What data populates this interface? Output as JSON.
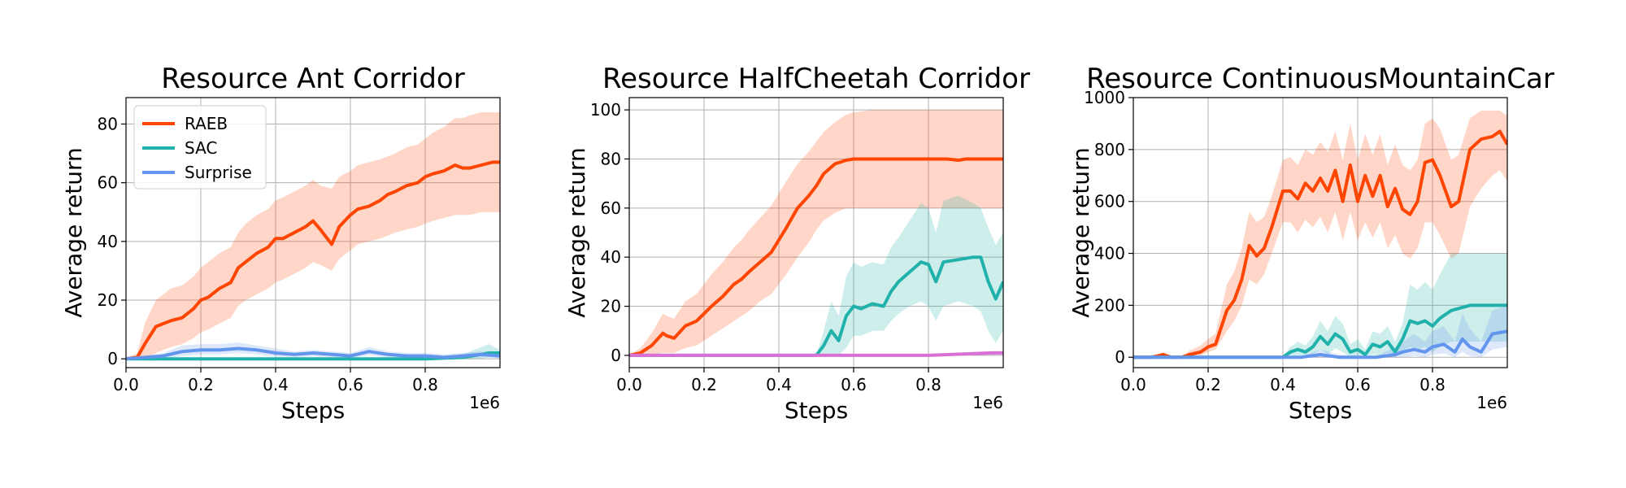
{
  "colors": {
    "RAEB": "#ff4500",
    "SAC": "#20b2aa",
    "Surprise": "#6495ed",
    "magenta": "#da70d6"
  },
  "legend": {
    "placement": "upper-left",
    "entries": [
      "RAEB",
      "SAC",
      "Surprise"
    ]
  },
  "chart_data": [
    {
      "type": "line",
      "title": "Resource Ant Corridor",
      "xlabel": "Steps",
      "ylabel": "Average return",
      "x_offset_label": "1e6",
      "xlim": [
        0,
        1.0
      ],
      "ylim": [
        -3,
        89
      ],
      "xticks": [
        0.0,
        0.2,
        0.4,
        0.6,
        0.8
      ],
      "xtick_labels": [
        "0.0",
        "0.2",
        "0.4",
        "0.6",
        "0.8"
      ],
      "yticks": [
        0,
        20,
        40,
        60,
        80
      ],
      "ytick_labels": [
        "0",
        "20",
        "40",
        "60",
        "80"
      ],
      "grid": true,
      "legend": true,
      "series": [
        {
          "name": "RAEB",
          "color": "#ff4500",
          "x": [
            0,
            0.03,
            0.05,
            0.08,
            0.1,
            0.12,
            0.15,
            0.18,
            0.2,
            0.22,
            0.25,
            0.28,
            0.3,
            0.32,
            0.35,
            0.38,
            0.4,
            0.42,
            0.45,
            0.48,
            0.5,
            0.52,
            0.55,
            0.57,
            0.6,
            0.62,
            0.65,
            0.68,
            0.7,
            0.72,
            0.75,
            0.78,
            0.8,
            0.82,
            0.85,
            0.88,
            0.9,
            0.92,
            0.95,
            0.98,
            1.0
          ],
          "y": [
            0,
            0.5,
            5,
            11,
            12,
            13,
            14,
            17,
            20,
            21,
            24,
            26,
            31,
            33,
            36,
            38,
            41,
            41,
            43,
            45,
            47,
            44,
            39,
            45,
            49,
            51,
            52,
            54,
            56,
            57,
            59,
            60,
            62,
            63,
            64,
            66,
            65,
            65,
            66,
            67,
            67
          ],
          "lower": [
            0,
            0,
            0,
            2,
            3,
            4,
            5,
            7,
            9,
            10,
            12,
            14,
            18,
            20,
            22,
            24,
            26,
            27,
            29,
            31,
            33,
            32,
            30,
            34,
            37,
            39,
            40,
            41,
            42,
            43,
            44,
            45,
            46,
            47,
            48,
            49,
            49,
            49,
            50,
            50,
            50
          ],
          "upper": [
            0,
            2,
            12,
            20,
            22,
            24,
            25,
            28,
            31,
            33,
            36,
            38,
            43,
            46,
            49,
            51,
            54,
            55,
            57,
            59,
            61,
            59,
            58,
            62,
            64,
            66,
            67,
            68,
            69,
            70,
            72,
            73,
            75,
            77,
            79,
            82,
            82,
            83,
            84,
            84,
            84
          ]
        },
        {
          "name": "SAC",
          "color": "#20b2aa",
          "x": [
            0,
            0.2,
            0.4,
            0.6,
            0.8,
            0.9,
            0.95,
            0.97,
            1.0
          ],
          "y": [
            0,
            0,
            0,
            0,
            0,
            0.5,
            1.5,
            2,
            2
          ],
          "lower": [
            0,
            0,
            0,
            0,
            0,
            0,
            0,
            0.5,
            0.5
          ],
          "upper": [
            0,
            0,
            0,
            0,
            0.5,
            1.5,
            4,
            5,
            3
          ]
        },
        {
          "name": "Surprise",
          "color": "#6495ed",
          "x": [
            0,
            0.05,
            0.1,
            0.15,
            0.2,
            0.25,
            0.3,
            0.35,
            0.4,
            0.45,
            0.5,
            0.55,
            0.6,
            0.65,
            0.7,
            0.75,
            0.8,
            0.85,
            0.9,
            0.95,
            1.0
          ],
          "y": [
            0,
            0.5,
            1,
            2.5,
            3,
            3,
            3.5,
            3,
            2,
            1.5,
            2,
            1.5,
            1,
            2.5,
            1.5,
            1,
            1,
            0.5,
            1,
            1.5,
            1
          ],
          "lower": [
            0,
            0,
            0,
            1,
            1.5,
            1.5,
            2,
            1.5,
            0.8,
            0.5,
            0.8,
            0.5,
            0.2,
            1.2,
            0.5,
            0.2,
            0.2,
            0,
            0.2,
            0.5,
            0.2
          ],
          "upper": [
            0,
            1,
            2,
            4.5,
            5,
            5,
            5.5,
            4.5,
            3.5,
            2.5,
            3,
            2.5,
            2,
            4,
            2.5,
            2,
            2,
            1.5,
            2,
            2.5,
            2
          ]
        }
      ]
    },
    {
      "type": "line",
      "title": "Resource HalfCheetah Corridor",
      "xlabel": "Steps",
      "ylabel": "Average return",
      "x_offset_label": "1e6",
      "xlim": [
        0,
        1.0
      ],
      "ylim": [
        -5,
        105
      ],
      "xticks": [
        0.0,
        0.2,
        0.4,
        0.6,
        0.8
      ],
      "xtick_labels": [
        "0.0",
        "0.2",
        "0.4",
        "0.6",
        "0.8"
      ],
      "yticks": [
        0,
        20,
        40,
        60,
        80,
        100
      ],
      "ytick_labels": [
        "0",
        "20",
        "40",
        "60",
        "80",
        "100"
      ],
      "grid": true,
      "legend": false,
      "series": [
        {
          "name": "RAEB",
          "color": "#ff4500",
          "x": [
            0,
            0.03,
            0.06,
            0.09,
            0.1,
            0.12,
            0.15,
            0.18,
            0.2,
            0.22,
            0.25,
            0.28,
            0.3,
            0.32,
            0.35,
            0.38,
            0.4,
            0.42,
            0.45,
            0.48,
            0.5,
            0.52,
            0.55,
            0.58,
            0.6,
            0.65,
            0.7,
            0.75,
            0.8,
            0.85,
            0.88,
            0.9,
            0.95,
            1.0
          ],
          "y": [
            0,
            1,
            4,
            9,
            8,
            7,
            12,
            14,
            17,
            20,
            24,
            29,
            31,
            34,
            38,
            42,
            47,
            52,
            60,
            65,
            69,
            74,
            78,
            79.5,
            80,
            80,
            80,
            80,
            80,
            80,
            79.5,
            80,
            80,
            80
          ],
          "lower": [
            0,
            0,
            0,
            1,
            1,
            1,
            3,
            4,
            6,
            8,
            11,
            14,
            16,
            18,
            22,
            25,
            29,
            33,
            40,
            46,
            51,
            55,
            58,
            60,
            60,
            60,
            60,
            60,
            60,
            60,
            60,
            60,
            60,
            60
          ],
          "upper": [
            0,
            3,
            9,
            17,
            16,
            15,
            22,
            25,
            29,
            33,
            38,
            44,
            47,
            51,
            56,
            61,
            66,
            71,
            78,
            83,
            87,
            91,
            95,
            98,
            99,
            100,
            100,
            100,
            100,
            100,
            100,
            100,
            100,
            100
          ]
        },
        {
          "name": "SAC",
          "color": "#20b2aa",
          "x": [
            0,
            0.5,
            0.52,
            0.54,
            0.56,
            0.58,
            0.6,
            0.62,
            0.65,
            0.68,
            0.7,
            0.72,
            0.75,
            0.78,
            0.8,
            0.82,
            0.84,
            0.88,
            0.92,
            0.94,
            0.96,
            0.98,
            1.0
          ],
          "y": [
            0,
            0,
            4,
            10,
            6,
            16,
            20,
            19,
            21,
            20,
            26,
            30,
            34,
            38,
            37,
            30,
            38,
            39,
            40,
            40,
            30,
            23,
            30
          ],
          "lower": [
            0,
            0,
            0,
            0,
            0,
            3,
            8,
            8,
            10,
            10,
            14,
            17,
            20,
            22,
            20,
            14,
            20,
            22,
            20,
            18,
            10,
            5,
            10
          ],
          "upper": [
            0,
            0,
            10,
            22,
            16,
            32,
            38,
            36,
            38,
            37,
            44,
            48,
            55,
            62,
            60,
            50,
            63,
            65,
            62,
            60,
            52,
            45,
            50
          ]
        },
        {
          "name": "",
          "color": "#da70d6",
          "x": [
            0,
            0.2,
            0.4,
            0.6,
            0.8,
            0.97,
            1.0
          ],
          "y": [
            0,
            0,
            0,
            0,
            0,
            1,
            1
          ],
          "lower": [
            0,
            0,
            0,
            0,
            0,
            0,
            0
          ],
          "upper": [
            0.3,
            0.3,
            0.3,
            0.3,
            0.3,
            1.8,
            1.8
          ]
        }
      ]
    },
    {
      "type": "line",
      "title": "Resource ContinuousMountainCar",
      "xlabel": "Steps",
      "ylabel": "Average return",
      "x_offset_label": "1e6",
      "xlim": [
        0,
        1.0
      ],
      "ylim": [
        -40,
        1000
      ],
      "xticks": [
        0.0,
        0.2,
        0.4,
        0.6,
        0.8
      ],
      "xtick_labels": [
        "0.0",
        "0.2",
        "0.4",
        "0.6",
        "0.8"
      ],
      "yticks": [
        0,
        200,
        400,
        600,
        800,
        1000
      ],
      "ytick_labels": [
        "0",
        "200",
        "400",
        "600",
        "800",
        "1000"
      ],
      "grid": true,
      "legend": false,
      "series": [
        {
          "name": "RAEB",
          "color": "#ff4500",
          "x": [
            0,
            0.05,
            0.08,
            0.1,
            0.13,
            0.15,
            0.18,
            0.2,
            0.22,
            0.25,
            0.27,
            0.29,
            0.31,
            0.33,
            0.35,
            0.37,
            0.4,
            0.42,
            0.44,
            0.46,
            0.48,
            0.5,
            0.52,
            0.54,
            0.56,
            0.58,
            0.6,
            0.62,
            0.64,
            0.66,
            0.68,
            0.7,
            0.72,
            0.74,
            0.76,
            0.78,
            0.8,
            0.82,
            0.85,
            0.87,
            0.9,
            0.93,
            0.96,
            0.98,
            1.0
          ],
          "y": [
            0,
            0,
            10,
            0,
            0,
            10,
            20,
            40,
            50,
            180,
            220,
            300,
            430,
            390,
            420,
            500,
            640,
            640,
            610,
            670,
            640,
            690,
            640,
            720,
            600,
            740,
            600,
            700,
            620,
            700,
            580,
            650,
            570,
            550,
            600,
            750,
            760,
            700,
            580,
            600,
            800,
            840,
            850,
            870,
            820
          ],
          "lower": [
            0,
            0,
            0,
            0,
            0,
            0,
            5,
            20,
            30,
            100,
            140,
            200,
            300,
            280,
            320,
            400,
            520,
            520,
            480,
            530,
            500,
            540,
            480,
            560,
            450,
            560,
            450,
            520,
            460,
            520,
            420,
            470,
            400,
            380,
            420,
            520,
            520,
            470,
            380,
            400,
            580,
            650,
            700,
            720,
            680
          ],
          "upper": [
            0,
            0,
            20,
            0,
            0,
            25,
            45,
            70,
            90,
            280,
            330,
            420,
            560,
            520,
            540,
            620,
            760,
            770,
            740,
            800,
            780,
            830,
            790,
            870,
            760,
            900,
            760,
            860,
            780,
            860,
            740,
            820,
            740,
            720,
            760,
            900,
            920,
            880,
            760,
            780,
            920,
            950,
            950,
            950,
            930
          ]
        },
        {
          "name": "SAC",
          "color": "#20b2aa",
          "x": [
            0,
            0.38,
            0.4,
            0.42,
            0.44,
            0.46,
            0.48,
            0.5,
            0.52,
            0.54,
            0.56,
            0.58,
            0.6,
            0.62,
            0.64,
            0.66,
            0.68,
            0.7,
            0.72,
            0.74,
            0.76,
            0.78,
            0.8,
            0.82,
            0.85,
            0.9,
            0.95,
            1.0
          ],
          "y": [
            0,
            0,
            0,
            20,
            30,
            20,
            40,
            80,
            50,
            90,
            70,
            20,
            30,
            10,
            50,
            40,
            60,
            20,
            70,
            140,
            130,
            140,
            120,
            150,
            180,
            200,
            200,
            200
          ],
          "lower": [
            0,
            0,
            0,
            0,
            5,
            0,
            10,
            30,
            10,
            35,
            20,
            0,
            5,
            0,
            10,
            5,
            15,
            0,
            20,
            40,
            30,
            40,
            20,
            40,
            60,
            60,
            60,
            60
          ],
          "upper": [
            0,
            0,
            5,
            40,
            60,
            45,
            80,
            140,
            100,
            160,
            130,
            50,
            70,
            30,
            100,
            90,
            120,
            60,
            130,
            280,
            260,
            290,
            260,
            320,
            400,
            400,
            400,
            400
          ]
        },
        {
          "name": "Surprise",
          "color": "#6495ed",
          "x": [
            0,
            0.3,
            0.45,
            0.5,
            0.55,
            0.6,
            0.65,
            0.7,
            0.72,
            0.75,
            0.78,
            0.8,
            0.83,
            0.86,
            0.88,
            0.9,
            0.93,
            0.96,
            1.0
          ],
          "y": [
            0,
            0,
            0,
            10,
            0,
            0,
            0,
            10,
            20,
            30,
            20,
            40,
            50,
            20,
            70,
            40,
            20,
            90,
            100
          ],
          "lower": [
            0,
            0,
            0,
            0,
            0,
            0,
            0,
            0,
            0,
            5,
            0,
            10,
            15,
            0,
            20,
            5,
            0,
            30,
            40
          ],
          "upper": [
            0,
            0,
            5,
            30,
            10,
            5,
            5,
            40,
            60,
            90,
            60,
            100,
            120,
            60,
            170,
            110,
            60,
            180,
            200
          ]
        }
      ]
    }
  ]
}
